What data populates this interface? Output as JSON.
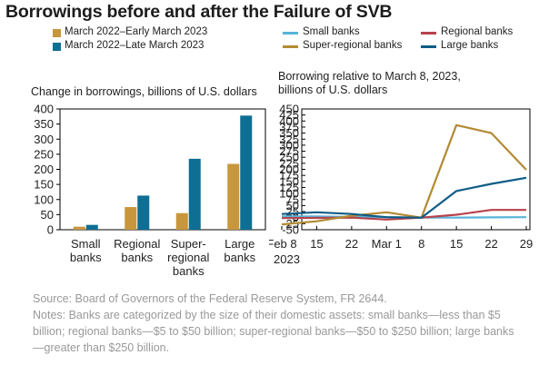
{
  "title": "Borrowings before and after the Failure of SVB",
  "colors": {
    "gold": "#c8963c",
    "blue": "#0e6e93",
    "light_blue": "#58b4d8",
    "red": "#b8424b",
    "super_line": "#b38a33",
    "large_line": "#0e5c86",
    "axis": "#000000"
  },
  "source": "Source: Board of Governors of the Federal Reserve System, FR 2644.",
  "notes": "Notes: Banks are categorized by the size of their domestic assets: small banks—less than $5 billion; regional banks—$5 to $50 billion; super-regional banks—$50 to $250 billion; large banks—greater than $250 billion.",
  "chart_data": [
    {
      "type": "bar",
      "subtitle": "Change in borrowings, billions of U.S. dollars",
      "categories": [
        [
          "Small",
          "banks"
        ],
        [
          "Regional",
          "banks"
        ],
        [
          "Super-",
          "regional",
          "banks"
        ],
        [
          "Large",
          "banks"
        ]
      ],
      "series": [
        {
          "name": "March 2022–Early March 2023",
          "color": "#c8963c",
          "values": [
            10,
            75,
            55,
            218
          ]
        },
        {
          "name": "March 2022–Late March 2023",
          "color": "#0e6e93",
          "values": [
            16,
            113,
            235,
            378
          ]
        }
      ],
      "yticks": [
        0,
        50,
        100,
        150,
        200,
        250,
        300,
        350,
        400
      ],
      "ylim": [
        0,
        400
      ],
      "grid": false,
      "legend": "top"
    },
    {
      "type": "line",
      "subtitle": [
        "Borrowing relative to March 8, 2023,",
        "billions of U.S. dollars"
      ],
      "x": [
        "Feb 8",
        "Feb 15",
        "Feb 22",
        "Mar 1",
        "Mar 8",
        "Mar 15",
        "Mar 22",
        "Mar 29"
      ],
      "xticklabels": [
        "Feb 8",
        "15",
        "22",
        "Mar 1",
        "8",
        "15",
        "22",
        "29"
      ],
      "xsublabel": "2023",
      "yticks": [
        -50,
        -25,
        0,
        25,
        50,
        75,
        100,
        125,
        150,
        175,
        200,
        225,
        250,
        275,
        300,
        325,
        350,
        375,
        400,
        425,
        450
      ],
      "ylim": [
        -50,
        450
      ],
      "grid": false,
      "legend": "top",
      "series": [
        {
          "name": "Small banks",
          "color": "#58b4d8",
          "values": [
            5,
            5,
            3,
            2,
            0,
            0,
            1,
            2
          ]
        },
        {
          "name": "Regional banks",
          "color": "#b8424b",
          "values": [
            -2,
            -1,
            0,
            -8,
            0,
            12,
            32,
            32
          ]
        },
        {
          "name": "Super-regional banks",
          "color": "#b38a33",
          "values": [
            -28,
            -15,
            8,
            22,
            0,
            383,
            350,
            198
          ]
        },
        {
          "name": "Large banks",
          "color": "#0e5c86",
          "values": [
            15,
            22,
            15,
            2,
            0,
            110,
            140,
            165
          ]
        }
      ]
    }
  ]
}
